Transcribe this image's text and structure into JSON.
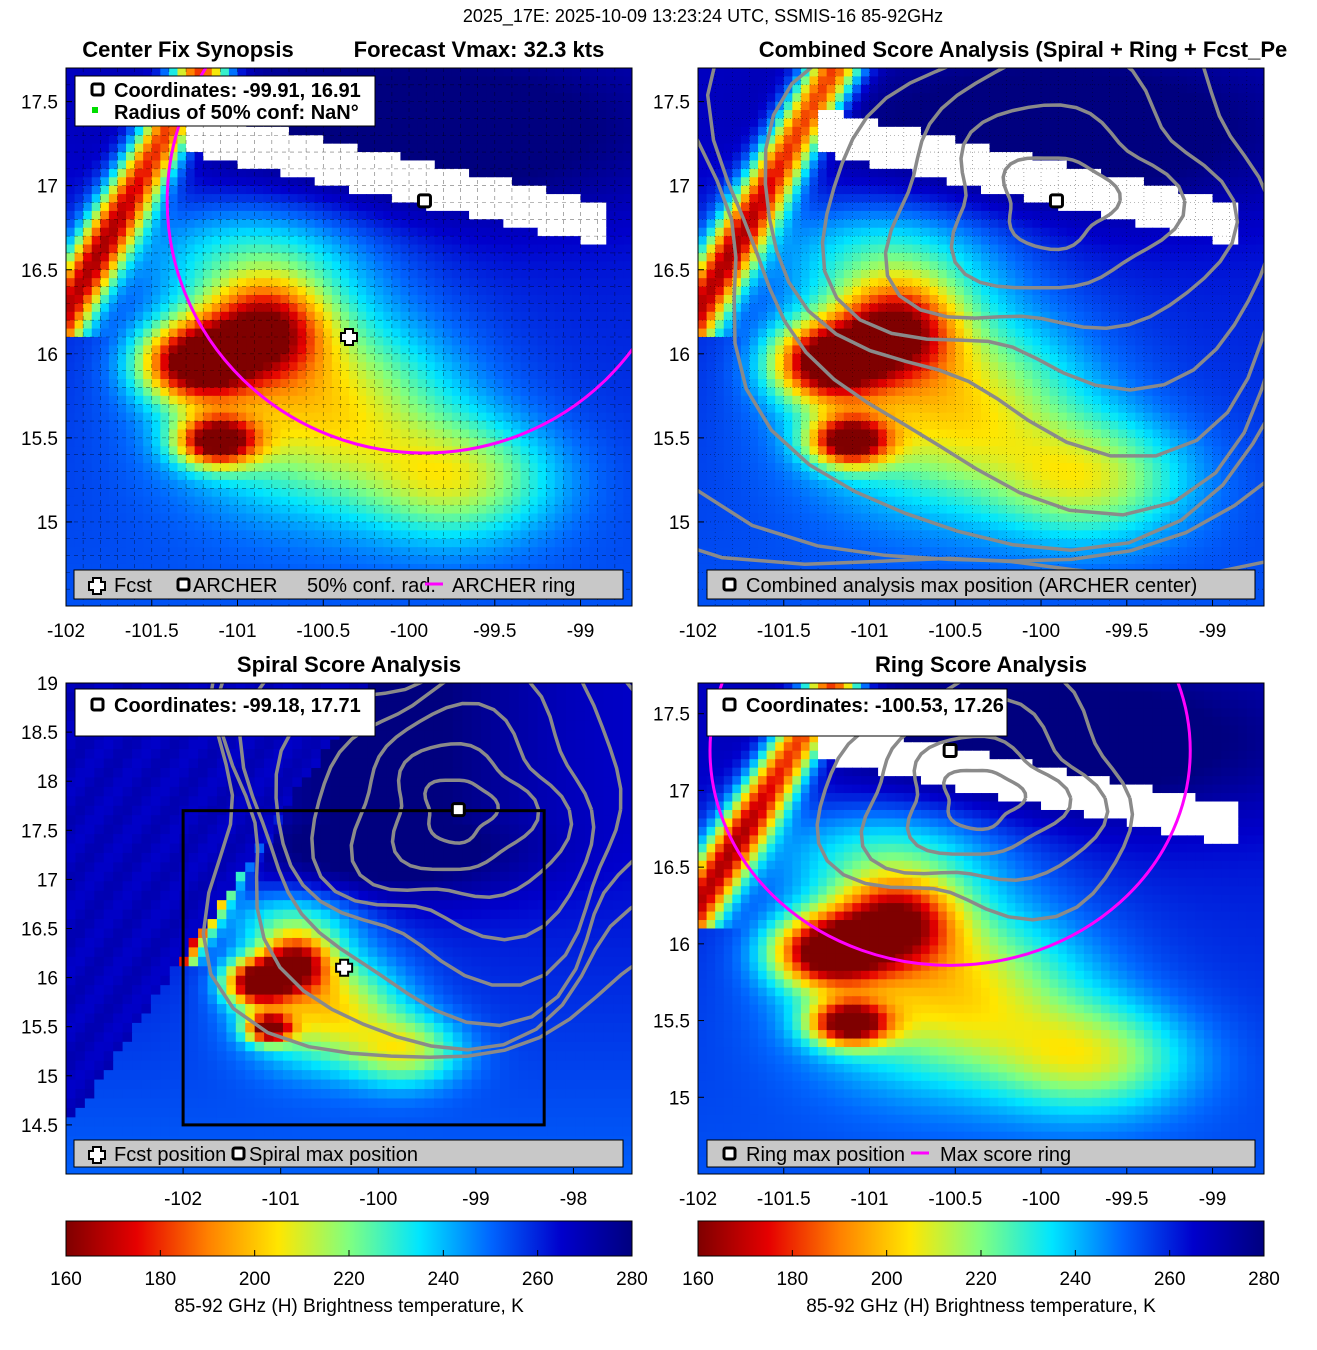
{
  "figure_title": "2025_17E: 2025-10-09 13:23:24 UTC, SSMIS-16 85-92GHz",
  "colormap": [
    "#7f0000",
    "#e60000",
    "#ff8000",
    "#ffe600",
    "#80ff80",
    "#00e5ff",
    "#0066ff",
    "#0000cc",
    "#00007f"
  ],
  "colors": {
    "contour": "#8a8a8a",
    "ring": "#ff00ff",
    "conf_marker": "#00dd00",
    "legend_bg": "#c8c8c8",
    "box": "#000000"
  },
  "chart_data": [
    {
      "type": "heatmap",
      "title_left": "Center Fix Synopsis",
      "title_right": "Forecast Vmax: 32.3 kts",
      "xlim": [
        -102,
        -98.7
      ],
      "ylim": [
        14.5,
        17.7
      ],
      "xticks": [
        -102,
        -101.5,
        -101,
        -100.5,
        -100,
        -99.5,
        -99
      ],
      "yticks": [
        15,
        15.5,
        16,
        16.5,
        17,
        17.5
      ],
      "grid": "dashed",
      "info_lines": [
        "Coordinates: -99.91, 16.91",
        "Radius of 50% conf: NaN°"
      ],
      "legend": [
        "Fcst",
        "ARCHER",
        "50% conf. rad.",
        "ARCHER ring"
      ],
      "markers": {
        "fcst": [
          -100.35,
          16.1
        ],
        "archer": [
          -99.91,
          16.91
        ]
      },
      "ring": {
        "center": [
          -99.91,
          16.91
        ],
        "radius_deg": 1.5
      }
    },
    {
      "type": "heatmap",
      "title": "Combined Score Analysis (Spiral + Ring + Fcst_Pe",
      "xlim": [
        -102,
        -98.7
      ],
      "ylim": [
        14.5,
        17.7
      ],
      "xticks": [
        -102,
        -101.5,
        -101,
        -100.5,
        -100,
        -99.5,
        -99
      ],
      "yticks": [
        15,
        15.5,
        16,
        16.5,
        17,
        17.5
      ],
      "grid": "dotted",
      "legend": [
        "Combined analysis max position (ARCHER center)"
      ],
      "markers": {
        "archer": [
          -99.91,
          16.91
        ]
      }
    },
    {
      "type": "heatmap",
      "title": "Spiral Score Analysis",
      "xlim": [
        -103.2,
        -97.4
      ],
      "ylim": [
        14.0,
        19.0
      ],
      "xticks": [
        -102,
        -101,
        -100,
        -99,
        -98
      ],
      "yticks": [
        14.5,
        15,
        15.5,
        16,
        16.5,
        17,
        17.5,
        18,
        18.5,
        19
      ],
      "info_lines": [
        "Coordinates: -99.18, 17.71"
      ],
      "legend": [
        "Fcst position",
        "Spiral max position"
      ],
      "markers": {
        "fcst": [
          -100.35,
          16.1
        ],
        "spiral_max": [
          -99.18,
          17.71
        ]
      },
      "box": {
        "x": [
          -102,
          -98.3
        ],
        "y": [
          14.5,
          17.7
        ]
      }
    },
    {
      "type": "heatmap",
      "title": "Ring Score Analysis",
      "xlim": [
        -102,
        -98.7
      ],
      "ylim": [
        14.5,
        17.7
      ],
      "xticks": [
        -102,
        -101.5,
        -101,
        -100.5,
        -100,
        -99.5,
        -99
      ],
      "yticks": [
        15,
        15.5,
        16,
        16.5,
        17,
        17.5
      ],
      "info_lines": [
        "Coordinates: -100.53, 17.26"
      ],
      "legend": [
        "Ring max position",
        "Max score ring"
      ],
      "markers": {
        "ring_max": [
          -100.53,
          17.26
        ]
      },
      "ring": {
        "center": [
          -100.53,
          17.26
        ],
        "radius_deg": 1.4
      }
    }
  ],
  "colorbars": [
    {
      "ticks": [
        160,
        180,
        200,
        220,
        240,
        260,
        280
      ],
      "range": [
        160,
        280
      ],
      "label": "85-92 GHz (H) Brightness temperature, K"
    },
    {
      "ticks": [
        160,
        180,
        200,
        220,
        240,
        260,
        280
      ],
      "range": [
        160,
        280
      ],
      "label": "85-92 GHz (H) Brightness temperature, K"
    }
  ]
}
